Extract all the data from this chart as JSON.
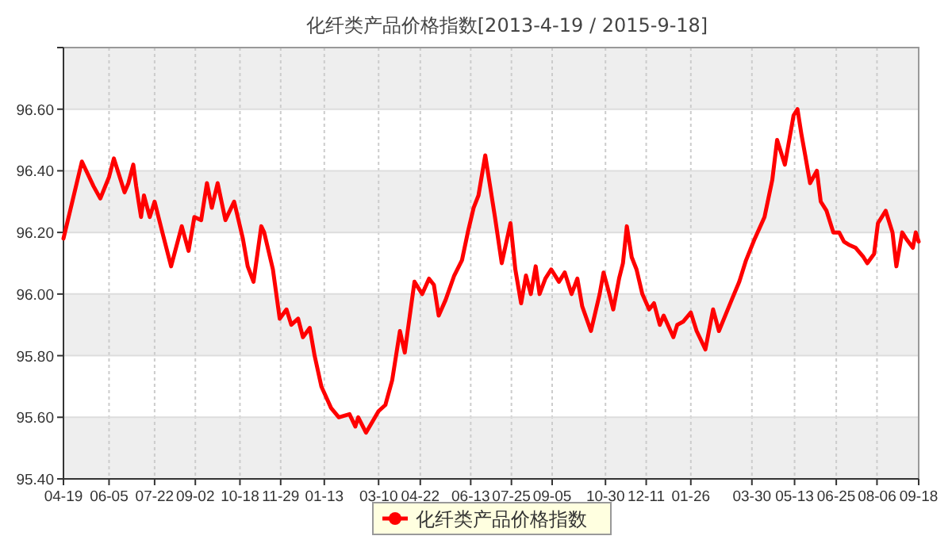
{
  "chart_data": {
    "type": "line",
    "title": "化纤类产品价格指数[2013-4-19 / 2015-9-18]",
    "xlim": [
      "2013-04-19",
      "2015-09-18"
    ],
    "xticks": [
      {
        "value": "2013-04-19",
        "label": "04-19"
      },
      {
        "value": "2013-06-05",
        "label": "06-05"
      },
      {
        "value": "2013-07-22",
        "label": "07-22"
      },
      {
        "value": "2013-09-02",
        "label": "09-02"
      },
      {
        "value": "2013-10-18",
        "label": "10-18"
      },
      {
        "value": "2013-11-29",
        "label": "11-29"
      },
      {
        "value": "2014-01-13",
        "label": "01-13"
      },
      {
        "value": "2014-03-10",
        "label": "03-10"
      },
      {
        "value": "2014-04-22",
        "label": "04-22"
      },
      {
        "value": "2014-06-13",
        "label": "06-13"
      },
      {
        "value": "2014-07-25",
        "label": "07-25"
      },
      {
        "value": "2014-09-05",
        "label": "09-05"
      },
      {
        "value": "2014-10-30",
        "label": "10-30"
      },
      {
        "value": "2014-12-11",
        "label": "12-11"
      },
      {
        "value": "2015-01-26",
        "label": "01-26"
      },
      {
        "value": "2015-03-30",
        "label": "03-30"
      },
      {
        "value": "2015-05-13",
        "label": "05-13"
      },
      {
        "value": "2015-06-25",
        "label": "06-25"
      },
      {
        "value": "2015-08-06",
        "label": "08-06"
      },
      {
        "value": "2015-09-18",
        "label": "09-18"
      }
    ],
    "ylim": [
      95.4,
      96.8
    ],
    "yticks": [
      {
        "value": 95.4,
        "label": "95.40"
      },
      {
        "value": 95.6,
        "label": "95.60"
      },
      {
        "value": 95.8,
        "label": "95.80"
      },
      {
        "value": 96.0,
        "label": "96.00"
      },
      {
        "value": 96.2,
        "label": "96.20"
      },
      {
        "value": 96.4,
        "label": "96.40"
      },
      {
        "value": 96.6,
        "label": "96.60"
      },
      {
        "value": 96.8,
        "label": null
      }
    ],
    "grid": true,
    "legend": "bottom",
    "marker": "none",
    "line_style": "solid",
    "series": [
      {
        "name": "化纤类产品价格指数",
        "color": "#ff0000",
        "x": [
          "2013-04-19",
          "2013-05-08",
          "2013-05-20",
          "2013-05-27",
          "2013-06-05",
          "2013-06-10",
          "2013-06-21",
          "2013-06-25",
          "2013-06-30",
          "2013-07-03",
          "2013-07-08",
          "2013-07-11",
          "2013-07-17",
          "2013-07-22",
          "2013-07-30",
          "2013-08-08",
          "2013-08-19",
          "2013-08-26",
          "2013-09-01",
          "2013-09-08",
          "2013-09-14",
          "2013-09-19",
          "2013-09-25",
          "2013-10-03",
          "2013-10-12",
          "2013-10-21",
          "2013-10-26",
          "2013-11-01",
          "2013-11-09",
          "2013-11-12",
          "2013-11-21",
          "2013-11-28",
          "2013-12-05",
          "2013-12-10",
          "2013-12-17",
          "2013-12-22",
          "2013-12-29",
          "2014-01-03",
          "2014-01-10",
          "2014-01-20",
          "2014-01-28",
          "2014-02-08",
          "2014-02-14",
          "2014-02-17",
          "2014-02-25",
          "2014-03-10",
          "2014-03-17",
          "2014-03-24",
          "2014-04-01",
          "2014-04-06",
          "2014-04-09",
          "2014-04-16",
          "2014-04-24",
          "2014-05-01",
          "2014-05-06",
          "2014-05-11",
          "2014-05-18",
          "2014-05-27",
          "2014-06-04",
          "2014-06-10",
          "2014-06-16",
          "2014-06-21",
          "2014-06-28",
          "2014-07-08",
          "2014-07-15",
          "2014-07-24",
          "2014-07-29",
          "2014-08-04",
          "2014-08-09",
          "2014-08-14",
          "2014-08-19",
          "2014-08-23",
          "2014-08-29",
          "2014-09-04",
          "2014-09-12",
          "2014-09-18",
          "2014-09-25",
          "2014-10-01",
          "2014-10-06",
          "2014-10-15",
          "2014-10-24",
          "2014-10-28",
          "2014-11-03",
          "2014-11-07",
          "2014-11-13",
          "2014-11-17",
          "2014-11-21",
          "2014-11-26",
          "2014-12-01",
          "2014-12-07",
          "2014-12-14",
          "2014-12-19",
          "2014-12-25",
          "2014-12-29",
          "2015-01-08",
          "2015-01-12",
          "2015-01-18",
          "2015-01-26",
          "2015-02-01",
          "2015-02-10",
          "2015-02-18",
          "2015-02-24",
          "2015-03-09",
          "2015-03-17",
          "2015-03-24",
          "2015-04-02",
          "2015-04-12",
          "2015-04-20",
          "2015-04-25",
          "2015-05-03",
          "2015-05-12",
          "2015-05-16",
          "2015-05-20",
          "2015-05-24",
          "2015-05-29",
          "2015-06-05",
          "2015-06-09",
          "2015-06-15",
          "2015-06-22",
          "2015-06-28",
          "2015-07-03",
          "2015-07-08",
          "2015-07-15",
          "2015-07-23",
          "2015-07-27",
          "2015-08-03",
          "2015-08-07",
          "2015-08-15",
          "2015-08-22",
          "2015-08-26",
          "2015-09-01",
          "2015-09-05",
          "2015-09-12",
          "2015-09-15",
          "2015-09-18"
        ],
        "values": [
          96.18,
          96.43,
          96.35,
          96.31,
          96.38,
          96.44,
          96.33,
          96.36,
          96.42,
          96.35,
          96.25,
          96.32,
          96.25,
          96.3,
          96.2,
          96.09,
          96.22,
          96.14,
          96.25,
          96.24,
          96.36,
          96.28,
          96.36,
          96.24,
          96.3,
          96.18,
          96.09,
          96.04,
          96.22,
          96.2,
          96.08,
          95.92,
          95.95,
          95.9,
          95.92,
          95.86,
          95.89,
          95.8,
          95.7,
          95.63,
          95.6,
          95.61,
          95.57,
          95.6,
          95.55,
          95.62,
          95.64,
          95.72,
          95.88,
          95.81,
          95.88,
          96.04,
          96.0,
          96.05,
          96.03,
          95.93,
          95.98,
          96.06,
          96.11,
          96.2,
          96.28,
          96.32,
          96.45,
          96.25,
          96.1,
          96.23,
          96.08,
          95.97,
          96.06,
          96.0,
          96.09,
          96.0,
          96.05,
          96.08,
          96.04,
          96.07,
          96.0,
          96.05,
          95.96,
          95.88,
          96.0,
          96.07,
          96.0,
          95.95,
          96.05,
          96.1,
          96.22,
          96.12,
          96.08,
          96.0,
          95.95,
          95.97,
          95.9,
          95.93,
          95.86,
          95.9,
          95.91,
          95.94,
          95.88,
          95.82,
          95.95,
          95.88,
          95.98,
          96.04,
          96.11,
          96.18,
          96.25,
          96.37,
          96.5,
          96.42,
          96.58,
          96.6,
          96.52,
          96.45,
          96.36,
          96.4,
          96.3,
          96.27,
          96.2,
          96.2,
          96.17,
          96.16,
          96.15,
          96.12,
          96.1,
          96.13,
          96.23,
          96.27,
          96.2,
          96.09,
          96.2,
          96.18,
          96.15,
          96.2,
          96.17
        ]
      }
    ]
  }
}
